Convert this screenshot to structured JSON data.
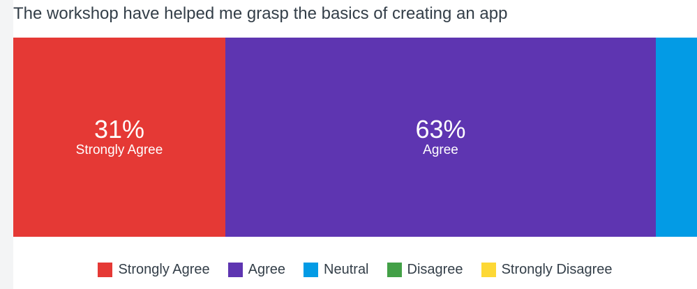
{
  "chart_data": {
    "type": "bar",
    "orientation": "horizontal-stacked",
    "title": "The workshop have helped me grasp the basics of creating an app",
    "categories": [
      "Strongly Agree",
      "Agree",
      "Neutral",
      "Disagree",
      "Strongly Disagree"
    ],
    "values": [
      31,
      63,
      6,
      0,
      0
    ],
    "value_labels": [
      "31%",
      "63%",
      "",
      "",
      ""
    ],
    "unit": "%",
    "colors": [
      "#e53935",
      "#5e35b1",
      "#039be5",
      "#43a047",
      "#fdd835"
    ],
    "legend": "bottom",
    "grid": false
  }
}
